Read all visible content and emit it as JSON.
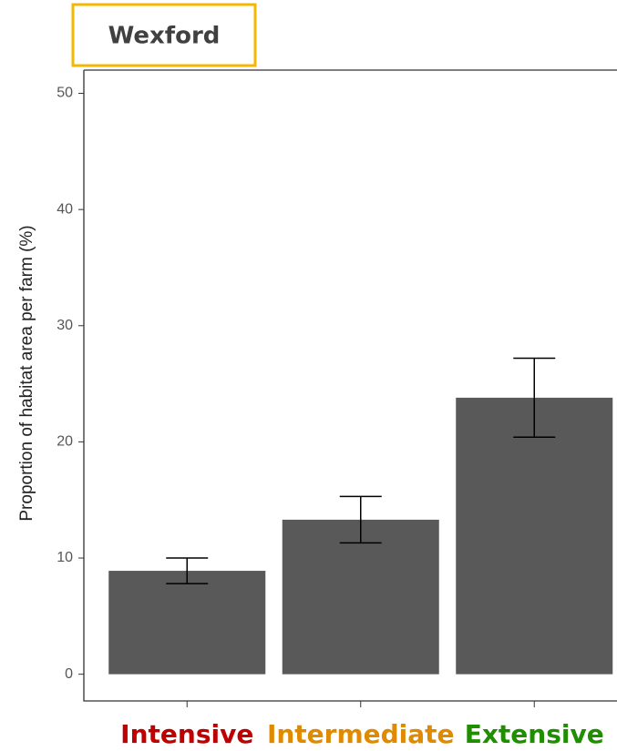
{
  "chart_data": {
    "type": "bar",
    "title": "Wexford",
    "y_label": "Proportion of habitat area per farm (%)",
    "categories": [
      "Intensive",
      "Intermediate",
      "Extensive"
    ],
    "category_colors": [
      "#c00000",
      "#e08a00",
      "#1f8f00"
    ],
    "values": [
      8.9,
      13.3,
      23.8
    ],
    "errors": [
      1.1,
      2.0,
      3.4
    ],
    "color": "#595959",
    "ylim": [
      -2.3,
      52
    ],
    "yticks": [
      0,
      10,
      20,
      30,
      40,
      50
    ],
    "grid": false
  }
}
